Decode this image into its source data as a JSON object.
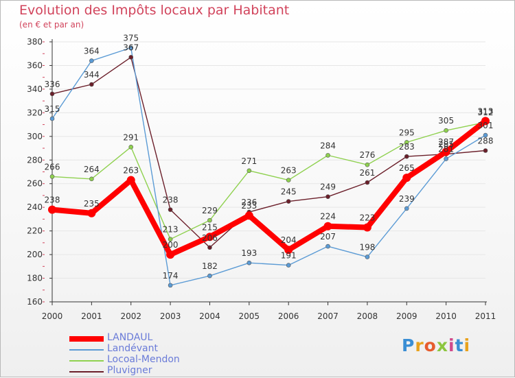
{
  "header": {
    "title": "Evolution des Impôts locaux par Habitant",
    "subtitle": "(en € et par an)"
  },
  "brand": {
    "text": "Proxiti"
  },
  "colors": {
    "title": "#d1435b",
    "axis": "#333333",
    "tick_red": "#d1435b",
    "grid": "#e6e6e6"
  },
  "chart_data": {
    "type": "line",
    "x": [
      "2000",
      "2001",
      "2002",
      "2003",
      "2004",
      "2005",
      "2006",
      "2007",
      "2008",
      "2009",
      "2010",
      "2011"
    ],
    "ylim": [
      160,
      380
    ],
    "yticks": [
      160,
      180,
      200,
      220,
      240,
      260,
      280,
      300,
      320,
      340,
      360,
      380
    ],
    "grid": true,
    "legend_position": "bottom-left",
    "series": [
      {
        "name": "LANDAUL",
        "color": "#ff0000",
        "values": [
          238,
          235,
          263,
          200,
          215,
          233,
          204,
          224,
          223,
          265,
          287,
          313
        ]
      },
      {
        "name": "Landévant",
        "color": "#5b9bd5",
        "values": [
          315,
          364,
          375,
          174,
          182,
          193,
          191,
          207,
          198,
          239,
          281,
          301
        ]
      },
      {
        "name": "Locoal-Mendon",
        "color": "#8fd14f",
        "values": [
          266,
          264,
          291,
          213,
          229,
          271,
          263,
          284,
          276,
          295,
          305,
          312
        ]
      },
      {
        "name": "Pluvigner",
        "color": "#6b1f2a",
        "values": [
          336,
          344,
          367,
          238,
          206,
          236,
          245,
          249,
          261,
          283,
          285,
          288
        ]
      }
    ]
  }
}
